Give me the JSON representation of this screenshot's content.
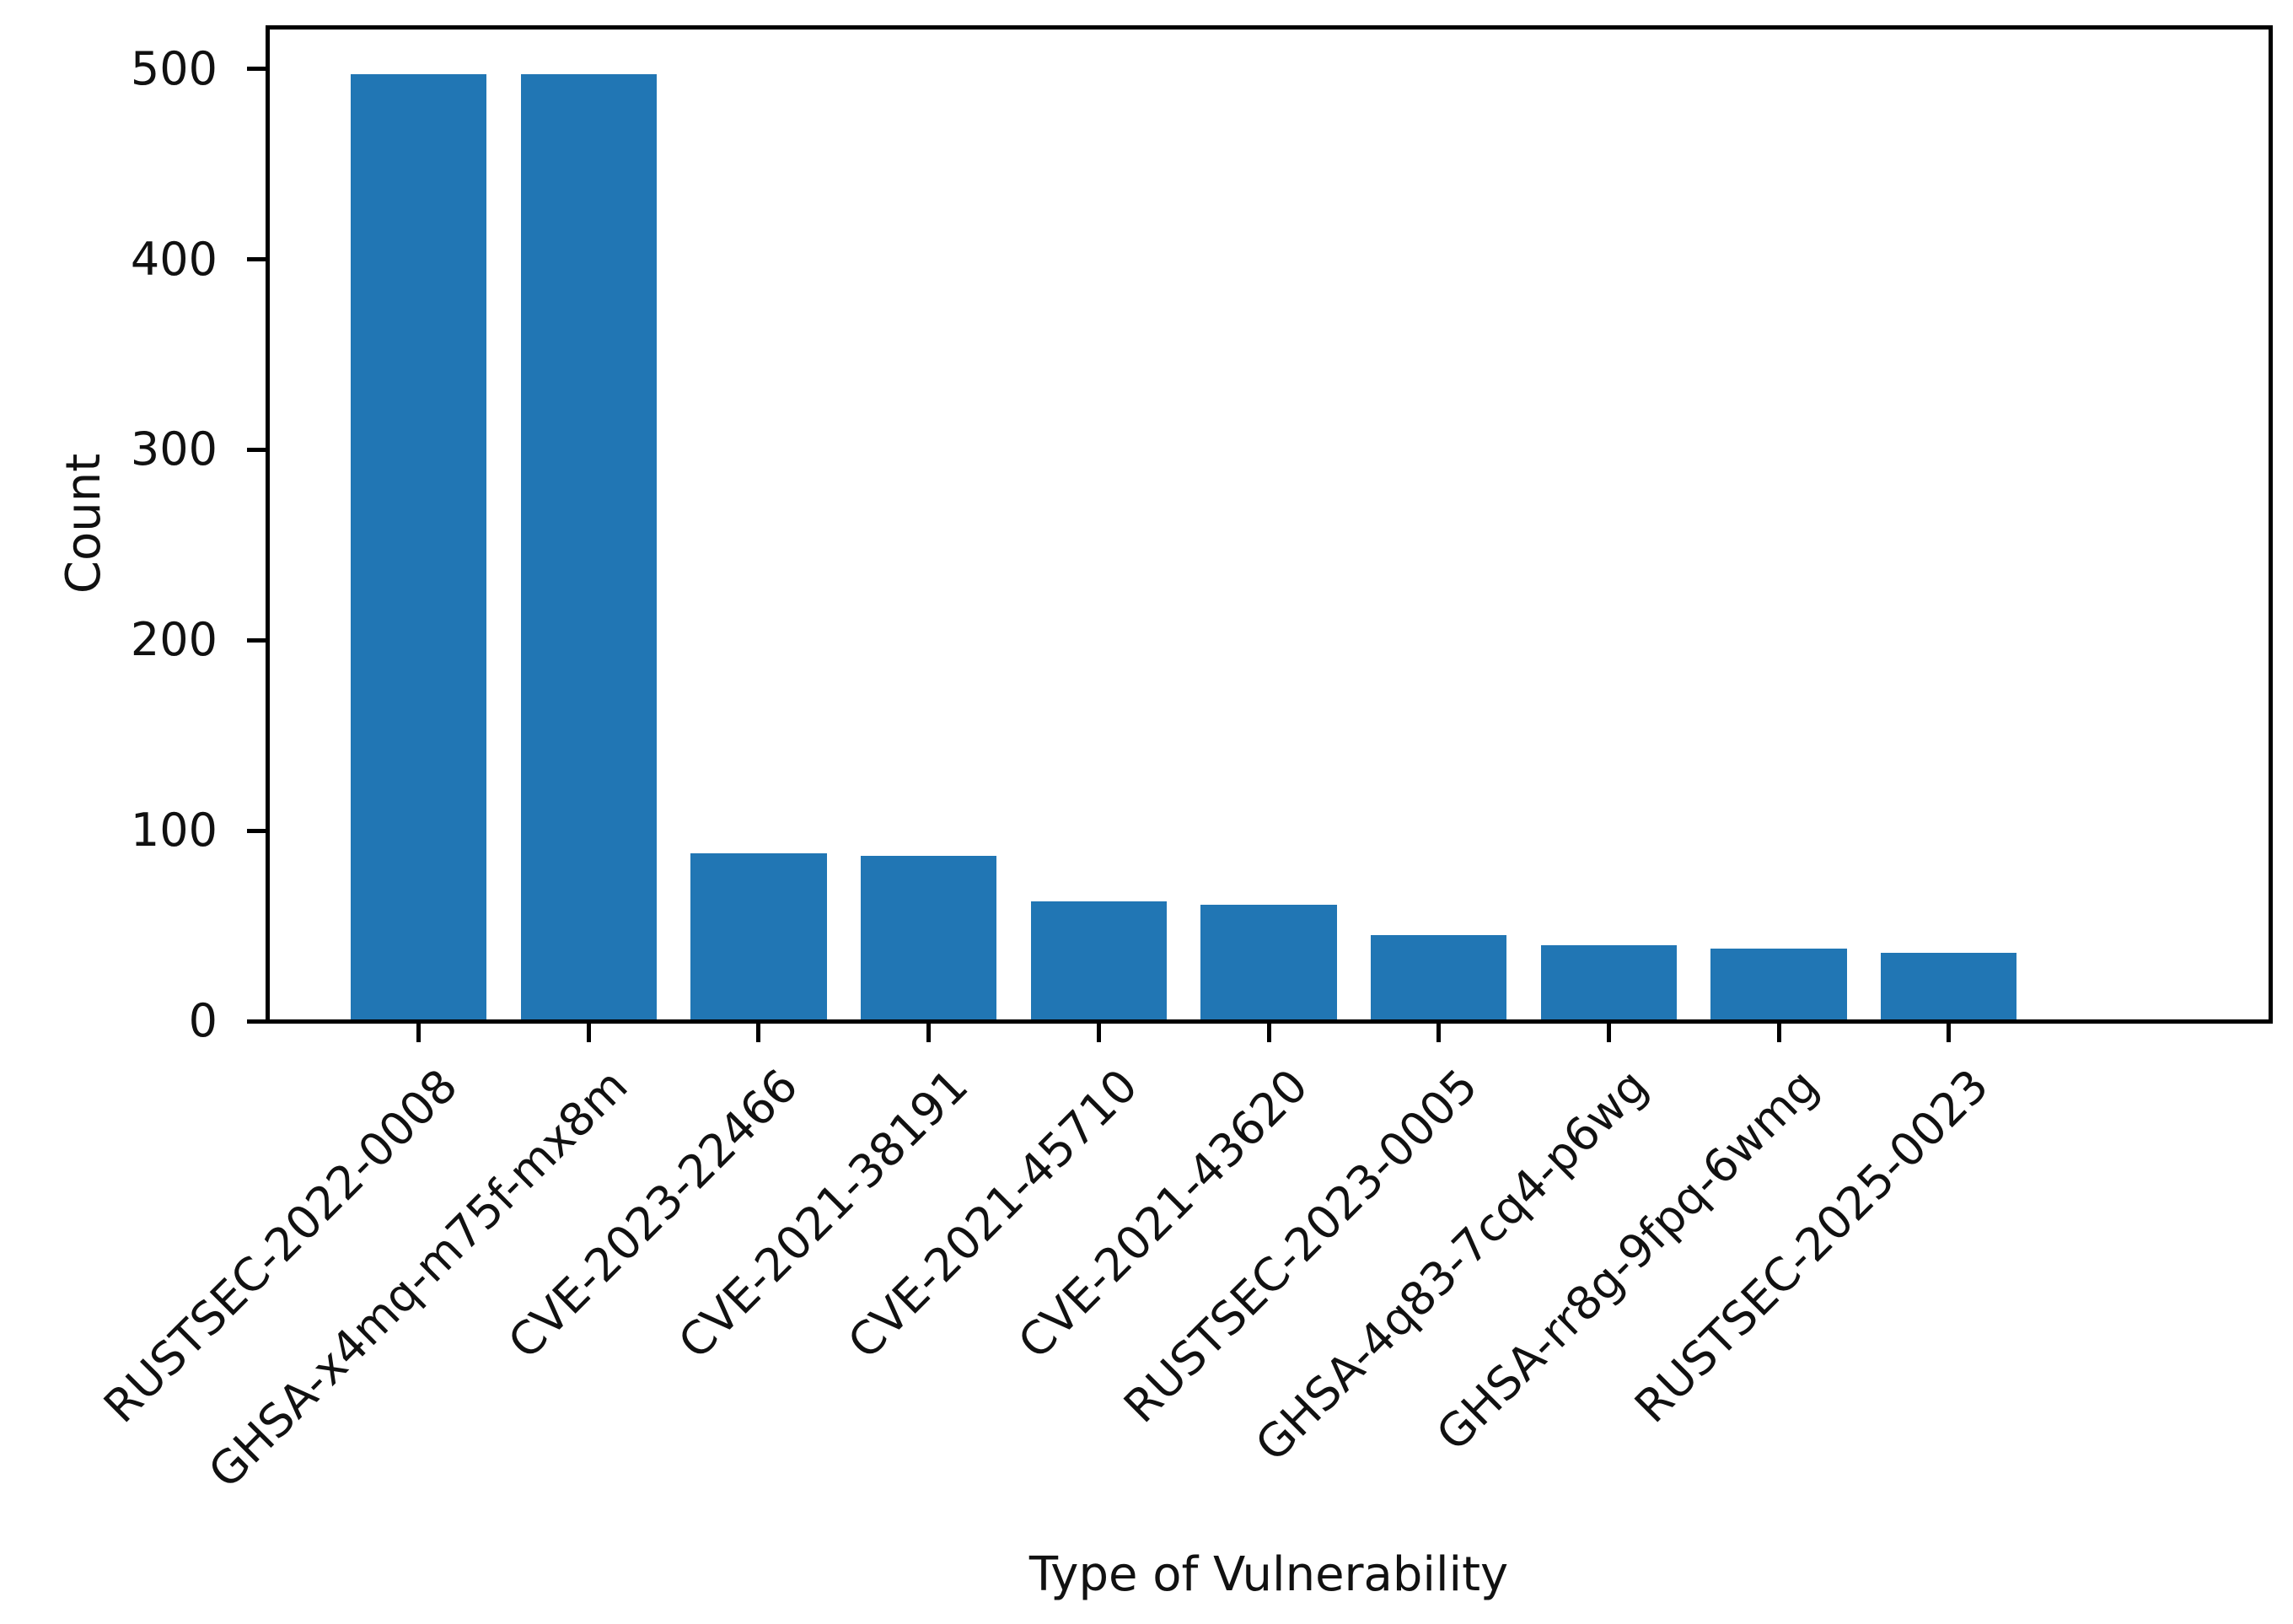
{
  "figure": {
    "background_color": "#ffffff",
    "text_color": "#111111"
  },
  "chart_data": {
    "type": "bar",
    "title": "",
    "xlabel": "Type of Vulnerability",
    "ylabel": "Count",
    "categories": [
      "RUSTSEC-2022-0008",
      "GHSA-x4mq-m75f-mx8m",
      "CVE-2023-22466",
      "CVE-2021-38191",
      "CVE-2021-45710",
      "CVE-2021-43620",
      "RUSTSEC-2023-0005",
      "GHSA-4q83-7cq4-p6wg",
      "GHSA-rr8g-9fpq-6wmg",
      "RUSTSEC-2025-0023"
    ],
    "values": [
      497,
      497,
      88,
      87,
      63,
      61,
      45,
      40,
      38,
      36
    ],
    "yticks": [
      0,
      100,
      200,
      300,
      400,
      500
    ],
    "ylim": [
      0,
      522
    ],
    "bar_color": "#2176b4",
    "axis_color": "#000000",
    "grid": false,
    "legend_position": "none",
    "x_tick_rotation_deg": 45
  }
}
